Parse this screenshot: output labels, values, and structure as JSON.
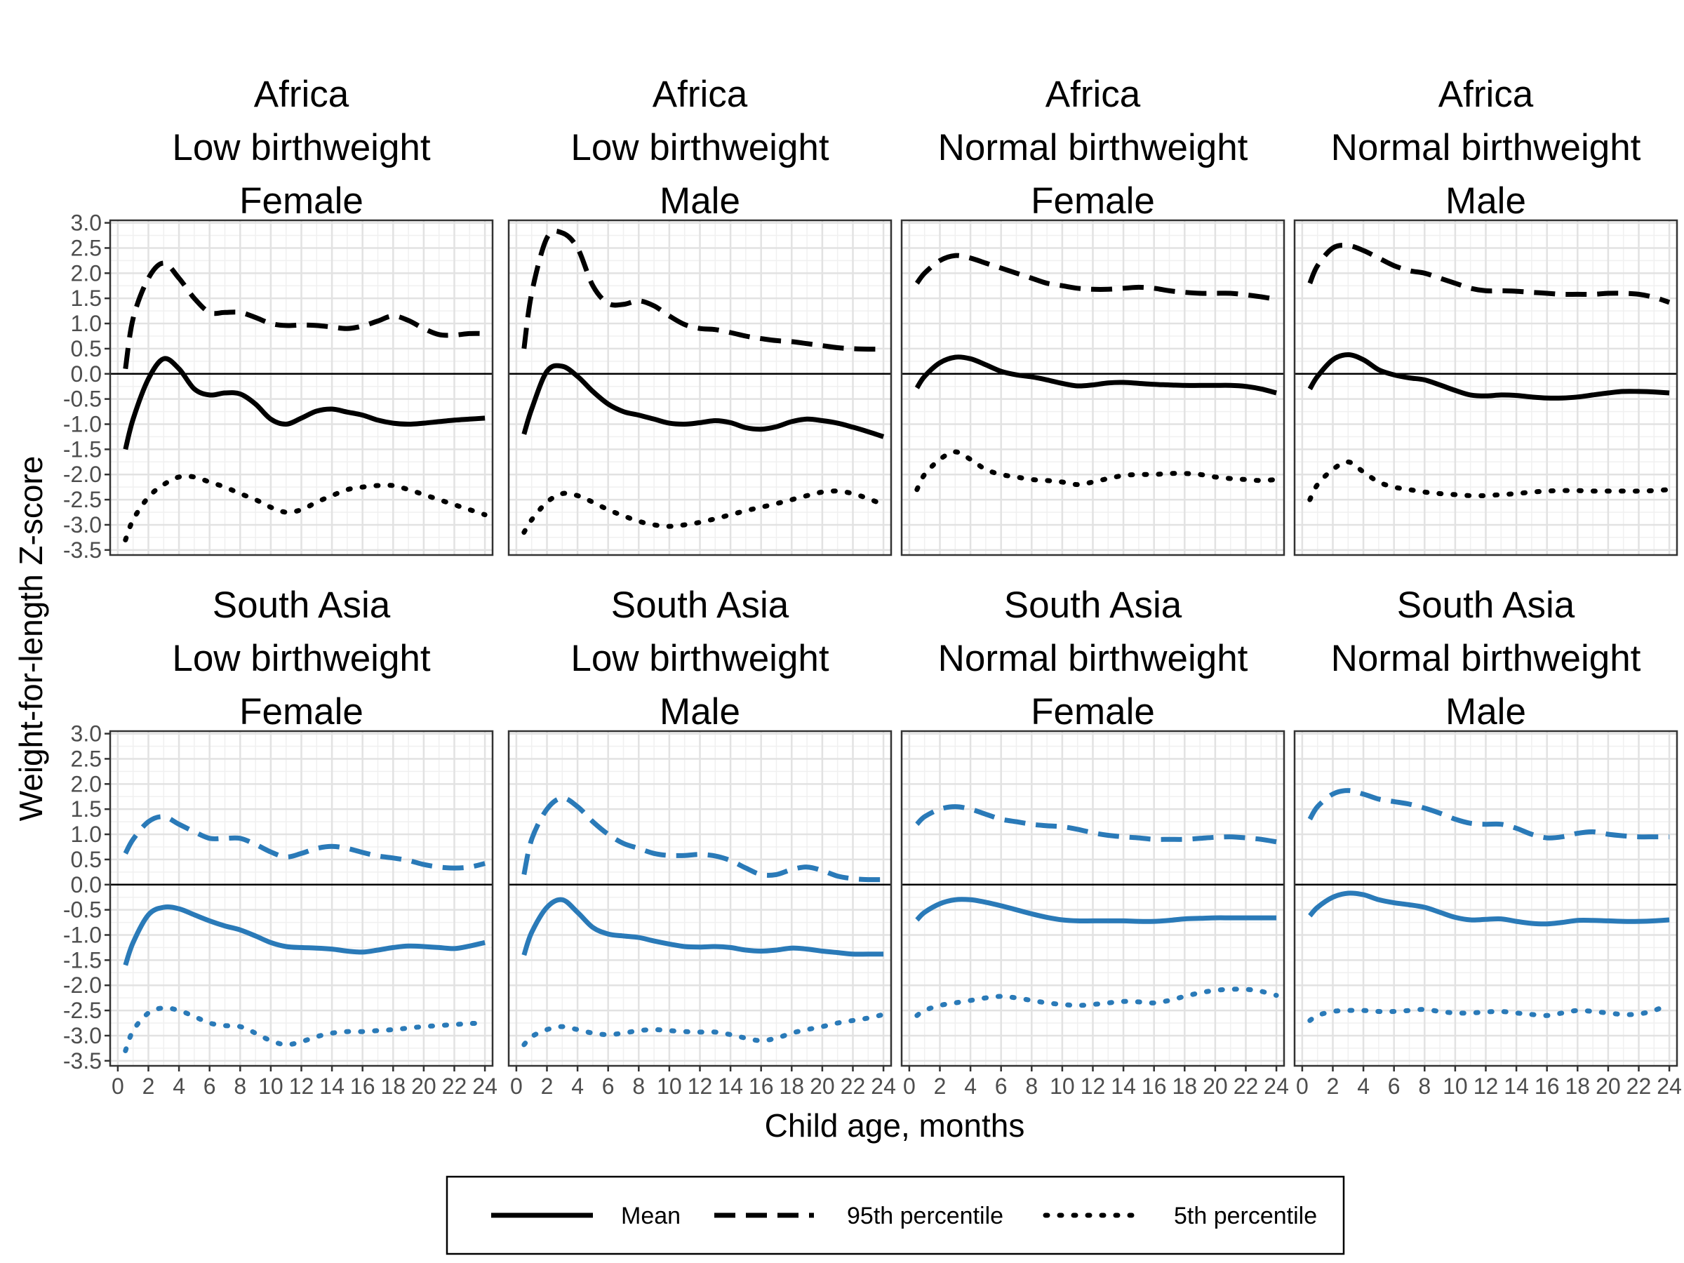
{
  "chart_data": {
    "type": "line",
    "layout": "faceted 2x4 grid",
    "xlabel": "Child age, months",
    "ylabel": "Weight-for-length Z-score",
    "xlim": [
      -0.5,
      24.5
    ],
    "ylim": [
      -3.6,
      3.05
    ],
    "x_ticks": [
      0,
      2,
      4,
      6,
      8,
      10,
      12,
      14,
      16,
      18,
      20,
      22,
      24
    ],
    "y_ticks": [
      3.0,
      2.5,
      2.0,
      1.5,
      1.0,
      0.5,
      0.0,
      -0.5,
      -1.0,
      -1.5,
      -2.0,
      -2.5,
      -3.0,
      -3.5
    ],
    "y_tick_labels": [
      "3.0",
      "2.5",
      "2.0",
      "1.5",
      "1.0",
      "0.5",
      "0.0",
      "-0.5",
      "-1.0",
      "-1.5",
      "-2.0",
      "-2.5",
      "-3.0",
      "-3.5"
    ],
    "reference_line_y": 0,
    "grid": true,
    "legend": {
      "placement": "bottom",
      "entries": [
        {
          "label": "Mean",
          "linetype": "solid"
        },
        {
          "label": "95th percentile",
          "linetype": "dashed"
        },
        {
          "label": "5th percentile",
          "linetype": "dotted"
        }
      ]
    },
    "colors": {
      "Africa": "#000000",
      "South Asia": "#2a7ab8"
    },
    "facets": [
      {
        "strip": [
          "Africa",
          "Low birthweight",
          "Female"
        ],
        "color": "#000000",
        "x": [
          0.5,
          1,
          2,
          3,
          4,
          5,
          6,
          7,
          8,
          9,
          10,
          11,
          12,
          13,
          14,
          15,
          16,
          17,
          18,
          19,
          20,
          21,
          22,
          23,
          24
        ],
        "mean": [
          -1.5,
          -0.9,
          -0.1,
          0.3,
          0.1,
          -0.3,
          -0.42,
          -0.38,
          -0.4,
          -0.6,
          -0.9,
          -1.0,
          -0.88,
          -0.74,
          -0.7,
          -0.76,
          -0.82,
          -0.92,
          -0.98,
          -1.0,
          -0.98,
          -0.95,
          -0.92,
          -0.9,
          -0.88
        ],
        "p95": [
          0.1,
          1.1,
          1.9,
          2.2,
          1.9,
          1.5,
          1.22,
          1.22,
          1.22,
          1.12,
          1.0,
          0.96,
          0.97,
          0.96,
          0.93,
          0.9,
          0.95,
          1.05,
          1.15,
          1.06,
          0.9,
          0.78,
          0.77,
          0.8,
          0.8
        ],
        "p5": [
          -3.3,
          -2.9,
          -2.45,
          -2.2,
          -2.05,
          -2.05,
          -2.15,
          -2.25,
          -2.38,
          -2.5,
          -2.65,
          -2.75,
          -2.7,
          -2.55,
          -2.42,
          -2.3,
          -2.25,
          -2.22,
          -2.22,
          -2.3,
          -2.4,
          -2.5,
          -2.6,
          -2.7,
          -2.8
        ]
      },
      {
        "strip": [
          "Africa",
          "Low birthweight",
          "Male"
        ],
        "color": "#000000",
        "x": [
          0.5,
          1,
          2,
          3,
          4,
          5,
          6,
          7,
          8,
          9,
          10,
          11,
          12,
          13,
          14,
          15,
          16,
          17,
          18,
          19,
          20,
          21,
          22,
          23,
          24
        ],
        "mean": [
          -1.2,
          -0.7,
          0.05,
          0.15,
          -0.05,
          -0.35,
          -0.6,
          -0.75,
          -0.82,
          -0.9,
          -0.98,
          -1.0,
          -0.97,
          -0.93,
          -0.97,
          -1.07,
          -1.1,
          -1.05,
          -0.95,
          -0.9,
          -0.93,
          -0.98,
          -1.06,
          -1.15,
          -1.25
        ],
        "p95": [
          0.5,
          1.6,
          2.7,
          2.8,
          2.5,
          1.75,
          1.4,
          1.38,
          1.45,
          1.35,
          1.15,
          0.98,
          0.9,
          0.88,
          0.82,
          0.75,
          0.7,
          0.66,
          0.64,
          0.6,
          0.56,
          0.52,
          0.5,
          0.49,
          0.49
        ],
        "p5": [
          -3.15,
          -2.9,
          -2.55,
          -2.38,
          -2.42,
          -2.55,
          -2.7,
          -2.82,
          -2.93,
          -3.0,
          -3.03,
          -3.0,
          -2.95,
          -2.88,
          -2.8,
          -2.72,
          -2.65,
          -2.58,
          -2.5,
          -2.42,
          -2.35,
          -2.33,
          -2.38,
          -2.48,
          -2.6
        ]
      },
      {
        "strip": [
          "Africa",
          "Normal birthweight",
          "Female"
        ],
        "color": "#000000",
        "x": [
          0.5,
          1,
          2,
          3,
          4,
          5,
          6,
          7,
          8,
          9,
          10,
          11,
          12,
          13,
          14,
          15,
          16,
          17,
          18,
          19,
          20,
          21,
          22,
          23,
          24
        ],
        "mean": [
          -0.28,
          -0.05,
          0.22,
          0.33,
          0.3,
          0.18,
          0.05,
          -0.02,
          -0.06,
          -0.12,
          -0.19,
          -0.24,
          -0.22,
          -0.18,
          -0.17,
          -0.19,
          -0.21,
          -0.22,
          -0.23,
          -0.23,
          -0.23,
          -0.23,
          -0.25,
          -0.3,
          -0.38
        ],
        "p95": [
          1.8,
          2.0,
          2.25,
          2.35,
          2.3,
          2.2,
          2.1,
          2.0,
          1.9,
          1.8,
          1.75,
          1.7,
          1.68,
          1.68,
          1.7,
          1.72,
          1.7,
          1.65,
          1.62,
          1.6,
          1.6,
          1.6,
          1.57,
          1.53,
          1.48
        ],
        "p5": [
          -2.3,
          -2.0,
          -1.7,
          -1.55,
          -1.7,
          -1.9,
          -2.0,
          -2.05,
          -2.1,
          -2.12,
          -2.15,
          -2.2,
          -2.15,
          -2.08,
          -2.02,
          -2.0,
          -2.0,
          -1.98,
          -1.98,
          -2.0,
          -2.05,
          -2.08,
          -2.1,
          -2.12,
          -2.1
        ]
      },
      {
        "strip": [
          "Africa",
          "Normal birthweight",
          "Male"
        ],
        "color": "#000000",
        "x": [
          0.5,
          1,
          2,
          3,
          4,
          5,
          6,
          7,
          8,
          9,
          10,
          11,
          12,
          13,
          14,
          15,
          16,
          17,
          18,
          19,
          20,
          21,
          22,
          23,
          24
        ],
        "mean": [
          -0.3,
          -0.05,
          0.28,
          0.38,
          0.28,
          0.08,
          -0.02,
          -0.08,
          -0.12,
          -0.22,
          -0.33,
          -0.42,
          -0.44,
          -0.42,
          -0.43,
          -0.46,
          -0.48,
          -0.48,
          -0.46,
          -0.42,
          -0.38,
          -0.35,
          -0.35,
          -0.36,
          -0.38
        ],
        "p95": [
          1.8,
          2.15,
          2.5,
          2.55,
          2.45,
          2.3,
          2.15,
          2.05,
          2.0,
          1.9,
          1.8,
          1.7,
          1.65,
          1.65,
          1.64,
          1.62,
          1.6,
          1.58,
          1.58,
          1.58,
          1.6,
          1.6,
          1.58,
          1.52,
          1.42
        ],
        "p5": [
          -2.5,
          -2.2,
          -1.9,
          -1.75,
          -1.95,
          -2.15,
          -2.25,
          -2.3,
          -2.35,
          -2.38,
          -2.4,
          -2.42,
          -2.42,
          -2.4,
          -2.38,
          -2.35,
          -2.33,
          -2.32,
          -2.32,
          -2.33,
          -2.33,
          -2.33,
          -2.33,
          -2.32,
          -2.3
        ]
      },
      {
        "strip": [
          "South Asia",
          "Low birthweight",
          "Female"
        ],
        "color": "#2a7ab8",
        "x": [
          0.5,
          1,
          2,
          3,
          4,
          5,
          6,
          7,
          8,
          9,
          10,
          11,
          12,
          13,
          14,
          15,
          16,
          17,
          18,
          19,
          20,
          21,
          22,
          23,
          24
        ],
        "mean": [
          -1.6,
          -1.15,
          -0.6,
          -0.45,
          -0.48,
          -0.6,
          -0.72,
          -0.82,
          -0.9,
          -1.02,
          -1.15,
          -1.23,
          -1.25,
          -1.26,
          -1.28,
          -1.32,
          -1.34,
          -1.3,
          -1.25,
          -1.22,
          -1.23,
          -1.25,
          -1.27,
          -1.22,
          -1.15
        ],
        "p95": [
          0.62,
          0.9,
          1.25,
          1.35,
          1.2,
          1.05,
          0.92,
          0.92,
          0.92,
          0.8,
          0.65,
          0.55,
          0.62,
          0.72,
          0.76,
          0.72,
          0.64,
          0.57,
          0.53,
          0.48,
          0.4,
          0.35,
          0.33,
          0.35,
          0.42
        ],
        "p5": [
          -3.3,
          -2.9,
          -2.55,
          -2.45,
          -2.5,
          -2.62,
          -2.75,
          -2.8,
          -2.82,
          -2.95,
          -3.1,
          -3.18,
          -3.12,
          -3.02,
          -2.95,
          -2.92,
          -2.92,
          -2.9,
          -2.88,
          -2.85,
          -2.82,
          -2.8,
          -2.78,
          -2.76,
          -2.75
        ]
      },
      {
        "strip": [
          "South Asia",
          "Low birthweight",
          "Male"
        ],
        "color": "#2a7ab8",
        "x": [
          0.5,
          1,
          2,
          3,
          4,
          5,
          6,
          7,
          8,
          9,
          10,
          11,
          12,
          13,
          14,
          15,
          16,
          17,
          18,
          19,
          20,
          21,
          22,
          23,
          24
        ],
        "mean": [
          -1.4,
          -0.95,
          -0.45,
          -0.3,
          -0.55,
          -0.85,
          -0.98,
          -1.02,
          -1.05,
          -1.12,
          -1.18,
          -1.23,
          -1.24,
          -1.23,
          -1.25,
          -1.3,
          -1.32,
          -1.3,
          -1.26,
          -1.28,
          -1.32,
          -1.35,
          -1.38,
          -1.38,
          -1.38
        ],
        "p95": [
          0.2,
          0.9,
          1.5,
          1.72,
          1.55,
          1.25,
          1.0,
          0.82,
          0.72,
          0.62,
          0.58,
          0.58,
          0.6,
          0.57,
          0.48,
          0.33,
          0.2,
          0.2,
          0.3,
          0.35,
          0.28,
          0.17,
          0.12,
          0.1,
          0.1
        ],
        "p5": [
          -3.18,
          -3.02,
          -2.88,
          -2.82,
          -2.88,
          -2.95,
          -2.98,
          -2.95,
          -2.9,
          -2.88,
          -2.9,
          -2.92,
          -2.93,
          -2.93,
          -2.98,
          -3.05,
          -3.1,
          -3.05,
          -2.95,
          -2.88,
          -2.82,
          -2.75,
          -2.7,
          -2.65,
          -2.58
        ]
      },
      {
        "strip": [
          "South Asia",
          "Normal birthweight",
          "Female"
        ],
        "color": "#2a7ab8",
        "x": [
          0.5,
          1,
          2,
          3,
          4,
          5,
          6,
          7,
          8,
          9,
          10,
          11,
          12,
          13,
          14,
          15,
          16,
          17,
          18,
          19,
          20,
          21,
          22,
          23,
          24
        ],
        "mean": [
          -0.7,
          -0.55,
          -0.38,
          -0.3,
          -0.3,
          -0.35,
          -0.42,
          -0.5,
          -0.58,
          -0.65,
          -0.7,
          -0.72,
          -0.72,
          -0.72,
          -0.72,
          -0.73,
          -0.73,
          -0.71,
          -0.68,
          -0.67,
          -0.66,
          -0.66,
          -0.66,
          -0.66,
          -0.66
        ],
        "p95": [
          1.2,
          1.35,
          1.5,
          1.55,
          1.5,
          1.4,
          1.3,
          1.25,
          1.2,
          1.17,
          1.15,
          1.1,
          1.03,
          0.98,
          0.95,
          0.93,
          0.9,
          0.9,
          0.9,
          0.92,
          0.94,
          0.95,
          0.93,
          0.9,
          0.85
        ],
        "p5": [
          -2.6,
          -2.5,
          -2.4,
          -2.35,
          -2.3,
          -2.25,
          -2.22,
          -2.25,
          -2.3,
          -2.35,
          -2.38,
          -2.4,
          -2.38,
          -2.35,
          -2.32,
          -2.33,
          -2.35,
          -2.3,
          -2.22,
          -2.15,
          -2.1,
          -2.08,
          -2.08,
          -2.12,
          -2.2
        ]
      },
      {
        "strip": [
          "South Asia",
          "Normal birthweight",
          "Male"
        ],
        "color": "#2a7ab8",
        "x": [
          0.5,
          1,
          2,
          3,
          4,
          5,
          6,
          7,
          8,
          9,
          10,
          11,
          12,
          13,
          14,
          15,
          16,
          17,
          18,
          19,
          20,
          21,
          22,
          23,
          24
        ],
        "mean": [
          -0.62,
          -0.45,
          -0.25,
          -0.17,
          -0.2,
          -0.3,
          -0.36,
          -0.4,
          -0.45,
          -0.55,
          -0.65,
          -0.7,
          -0.69,
          -0.68,
          -0.73,
          -0.77,
          -0.78,
          -0.75,
          -0.71,
          -0.71,
          -0.72,
          -0.73,
          -0.73,
          -0.72,
          -0.7
        ],
        "p95": [
          1.3,
          1.55,
          1.8,
          1.87,
          1.8,
          1.7,
          1.65,
          1.6,
          1.52,
          1.42,
          1.3,
          1.22,
          1.2,
          1.2,
          1.12,
          1.0,
          0.93,
          0.95,
          1.02,
          1.05,
          1.0,
          0.97,
          0.95,
          0.95,
          0.95
        ],
        "p5": [
          -2.7,
          -2.6,
          -2.52,
          -2.5,
          -2.5,
          -2.52,
          -2.52,
          -2.5,
          -2.48,
          -2.52,
          -2.55,
          -2.55,
          -2.53,
          -2.52,
          -2.55,
          -2.58,
          -2.6,
          -2.55,
          -2.5,
          -2.52,
          -2.55,
          -2.58,
          -2.57,
          -2.5,
          -2.38
        ]
      }
    ]
  }
}
